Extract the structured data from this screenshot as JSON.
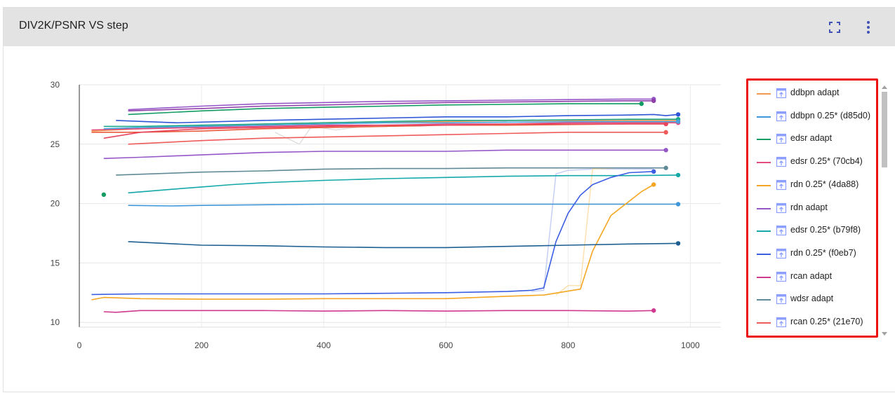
{
  "card": {
    "title": "DIV2K/PSNR VS step",
    "fullscreen_icon": "fullscreen-icon",
    "more_icon": "more-vert-icon",
    "icon_color": "#3f51b5"
  },
  "chart_data": {
    "type": "line",
    "title": "DIV2K/PSNR VS step",
    "xlabel": "",
    "ylabel": "",
    "xlim": [
      0,
      1050
    ],
    "ylim": [
      9.6,
      30.0
    ],
    "x_ticks": [
      0,
      200,
      400,
      600,
      800,
      1000
    ],
    "y_ticks": [
      10,
      15,
      20,
      25,
      30
    ],
    "grid": true,
    "legend_position": "right",
    "series": [
      {
        "name": "ddbpn adapt",
        "color": "#f29a4a",
        "x": [
          20,
          100,
          200,
          300,
          400,
          500,
          600,
          700,
          800,
          900,
          980
        ],
        "y": [
          26.1,
          26.3,
          26.5,
          26.7,
          26.8,
          26.9,
          26.9,
          27.0,
          27.0,
          27.0,
          27.0
        ]
      },
      {
        "name": "ddbpn 0.25* (d85d0)",
        "color": "#3f97d9",
        "x": [
          80,
          150,
          200,
          300,
          400,
          500,
          600,
          700,
          800,
          900,
          980
        ],
        "y": [
          19.85,
          19.8,
          19.85,
          19.9,
          19.95,
          19.95,
          19.95,
          19.95,
          19.95,
          19.95,
          19.95
        ]
      },
      {
        "name": "edsr adapt",
        "color": "#129b62",
        "x": [
          80,
          200,
          300,
          400,
          500,
          600,
          700,
          800,
          920
        ],
        "y": [
          27.5,
          27.8,
          28.0,
          28.1,
          28.2,
          28.3,
          28.35,
          28.4,
          28.4
        ]
      },
      {
        "name": "edsr 0.25* (70cb4)",
        "color": "#e24a7e",
        "x": [
          20,
          100,
          200,
          300,
          400,
          500,
          600,
          700,
          800,
          900,
          980
        ],
        "y": [
          26.2,
          26.3,
          26.4,
          26.5,
          26.6,
          26.6,
          26.7,
          26.7,
          26.8,
          26.8,
          26.8
        ]
      },
      {
        "name": "rdn 0.25* (4da88)",
        "color": "#f5a623",
        "x": [
          20,
          40,
          100,
          200,
          300,
          400,
          500,
          600,
          700,
          760,
          820,
          840,
          870,
          900,
          920,
          940
        ],
        "y": [
          11.9,
          12.1,
          12.0,
          11.95,
          11.95,
          12.0,
          12.0,
          12.0,
          12.2,
          12.3,
          12.8,
          16.0,
          19.0,
          20.2,
          21.0,
          21.6
        ]
      },
      {
        "name": "rdn adapt",
        "color": "#9556c7",
        "x": [
          80,
          200,
          300,
          400,
          500,
          600,
          700,
          800,
          900,
          940
        ],
        "y": [
          27.9,
          28.2,
          28.4,
          28.5,
          28.6,
          28.65,
          28.7,
          28.75,
          28.8,
          28.8
        ]
      },
      {
        "name": "edsr 0.25* (b79f8)",
        "color": "#14a8a8",
        "x": [
          80,
          150,
          200,
          250,
          300,
          400,
          500,
          600,
          700,
          800,
          900,
          980
        ],
        "y": [
          20.9,
          21.2,
          21.4,
          21.6,
          21.75,
          21.95,
          22.1,
          22.2,
          22.3,
          22.35,
          22.35,
          22.4
        ]
      },
      {
        "name": "rdn 0.25* (f0eb7)",
        "color": "#3b5ee3",
        "x": [
          20,
          100,
          200,
          300,
          400,
          500,
          600,
          700,
          740,
          760,
          780,
          800,
          820,
          840,
          870,
          900,
          940
        ],
        "y": [
          12.35,
          12.4,
          12.4,
          12.4,
          12.4,
          12.45,
          12.5,
          12.6,
          12.7,
          12.9,
          16.8,
          19.2,
          20.7,
          21.6,
          22.2,
          22.6,
          22.7
        ]
      },
      {
        "name": "rcan adapt",
        "color": "#cf3a8e",
        "x": [
          40,
          60,
          100,
          200,
          300,
          400,
          500,
          600,
          700,
          800,
          900,
          940
        ],
        "y": [
          10.9,
          10.85,
          11.0,
          11.0,
          11.0,
          10.95,
          11.0,
          10.95,
          11.0,
          11.0,
          10.95,
          11.0
        ]
      },
      {
        "name": "wdsr adapt",
        "color": "#5f8a96",
        "x": [
          60,
          200,
          300,
          400,
          500,
          600,
          700,
          800,
          900,
          960
        ],
        "y": [
          22.4,
          22.65,
          22.75,
          22.9,
          22.95,
          22.95,
          23.0,
          23.0,
          23.0,
          23.0
        ]
      },
      {
        "name": "rcan 0.25* (21e70)",
        "color": "#ef5b5b",
        "x": [
          80,
          200,
          300,
          400,
          500,
          600,
          700,
          800,
          900,
          960
        ],
        "y": [
          25.0,
          25.3,
          25.5,
          25.6,
          25.7,
          25.8,
          25.9,
          26.0,
          26.0,
          26.0
        ]
      },
      {
        "name": "",
        "color": "#9556c7",
        "x": [
          40,
          100,
          200,
          300,
          400,
          500,
          600,
          700,
          800,
          900,
          960
        ],
        "y": [
          23.8,
          23.9,
          24.1,
          24.3,
          24.4,
          24.4,
          24.4,
          24.5,
          24.5,
          24.5,
          24.5
        ]
      },
      {
        "name": "",
        "color": "#1d5f91",
        "x": [
          80,
          200,
          300,
          400,
          500,
          600,
          700,
          800,
          900,
          980
        ],
        "y": [
          16.8,
          16.5,
          16.45,
          16.35,
          16.3,
          16.3,
          16.4,
          16.5,
          16.6,
          16.65
        ]
      },
      {
        "name": "",
        "color": "#8e3fa8",
        "x": [
          80,
          200,
          300,
          400,
          500,
          600,
          700,
          800,
          900,
          940
        ],
        "y": [
          27.8,
          28.0,
          28.2,
          28.3,
          28.4,
          28.5,
          28.55,
          28.6,
          28.65,
          28.65
        ]
      },
      {
        "name": "",
        "color": "#2f56d6",
        "x": [
          60,
          160,
          300,
          400,
          500,
          600,
          700,
          800,
          900,
          940,
          960,
          980
        ],
        "y": [
          27.0,
          26.8,
          27.0,
          27.1,
          27.2,
          27.3,
          27.3,
          27.4,
          27.45,
          27.5,
          27.4,
          27.5
        ]
      },
      {
        "name": "",
        "color": "#ea5a3c",
        "x": [
          20,
          100,
          200,
          300,
          400,
          500,
          600,
          700,
          800,
          900,
          960
        ],
        "y": [
          26.0,
          26.0,
          26.1,
          26.3,
          26.4,
          26.5,
          26.6,
          26.6,
          26.65,
          26.7,
          26.7
        ]
      },
      {
        "name": "",
        "color": "#1aa88a",
        "x": [
          40,
          100,
          200,
          300,
          400,
          500,
          600,
          700,
          800,
          900,
          980
        ],
        "y": [
          26.5,
          26.5,
          26.6,
          26.7,
          26.8,
          26.9,
          27.0,
          27.0,
          27.05,
          27.1,
          27.1
        ]
      },
      {
        "name": "",
        "color": "#e8465f",
        "x": [
          40,
          100,
          200,
          300,
          400,
          500,
          600,
          700,
          800,
          900,
          960
        ],
        "y": [
          25.5,
          26.0,
          26.3,
          26.4,
          26.5,
          26.6,
          26.6,
          26.7,
          26.7,
          26.7,
          26.7
        ]
      },
      {
        "name": "",
        "color": "#4aa3e0",
        "x": [
          40,
          100,
          200,
          300,
          400,
          500,
          600,
          700,
          800,
          900,
          980
        ],
        "y": [
          26.3,
          26.4,
          26.5,
          26.6,
          26.7,
          26.8,
          26.8,
          26.85,
          26.9,
          26.9,
          26.9
        ]
      }
    ],
    "isolated_points": [
      {
        "x": 40,
        "y": 20.75,
        "color": "#129b62"
      }
    ],
    "faint_raw": [
      {
        "color": "#c7cff5",
        "x": [
          740,
          760,
          780,
          800,
          840,
          880,
          940
        ],
        "y": [
          12.6,
          12.7,
          22.5,
          22.8,
          22.9,
          22.9,
          22.9
        ]
      },
      {
        "color": "#fde0b0",
        "x": [
          780,
          800,
          820,
          840,
          880,
          920,
          940
        ],
        "y": [
          12.3,
          13.1,
          13.1,
          22.9,
          23.0,
          23.0,
          23.0
        ]
      },
      {
        "color": "#e0e0e0",
        "x": [
          320,
          360,
          380,
          420,
          480,
          560,
          620,
          700
        ],
        "y": [
          26.0,
          25.0,
          26.5,
          26.2,
          26.6,
          26.5,
          26.8,
          26.9
        ]
      }
    ]
  },
  "legend": {
    "items": [
      {
        "label": "ddbpn adapt",
        "color": "#f29a4a"
      },
      {
        "label": "ddbpn 0.25* (d85d0)",
        "color": "#3f97d9"
      },
      {
        "label": "edsr adapt",
        "color": "#129b62"
      },
      {
        "label": "edsr 0.25* (70cb4)",
        "color": "#e24a7e"
      },
      {
        "label": "rdn 0.25* (4da88)",
        "color": "#f5a623"
      },
      {
        "label": "rdn adapt",
        "color": "#9556c7"
      },
      {
        "label": "edsr 0.25* (b79f8)",
        "color": "#14a8a8"
      },
      {
        "label": "rdn 0.25* (f0eb7)",
        "color": "#3b5ee3"
      },
      {
        "label": "rcan adapt",
        "color": "#cf3a8e"
      },
      {
        "label": "wdsr adapt",
        "color": "#5f8a96"
      },
      {
        "label": "rcan 0.25* (21e70)",
        "color": "#ef5b5b"
      }
    ],
    "run_icon": "run-icon",
    "highlight_color": "#ee1111"
  }
}
